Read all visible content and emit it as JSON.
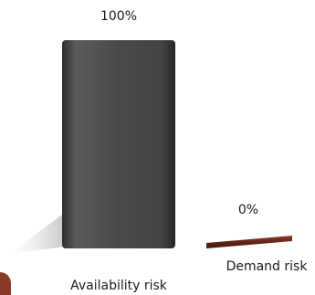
{
  "chart_data": {
    "type": "bar",
    "categories": [
      "Availability risk",
      "Demand risk"
    ],
    "values": [
      100,
      0
    ],
    "data_labels": [
      "100%",
      "0%"
    ],
    "ylim": [
      0,
      100
    ],
    "title": "",
    "xlabel": "",
    "ylabel": "",
    "grid": false,
    "legend": "none",
    "colors": [
      "#4a4a4a",
      "#5c2418"
    ]
  }
}
